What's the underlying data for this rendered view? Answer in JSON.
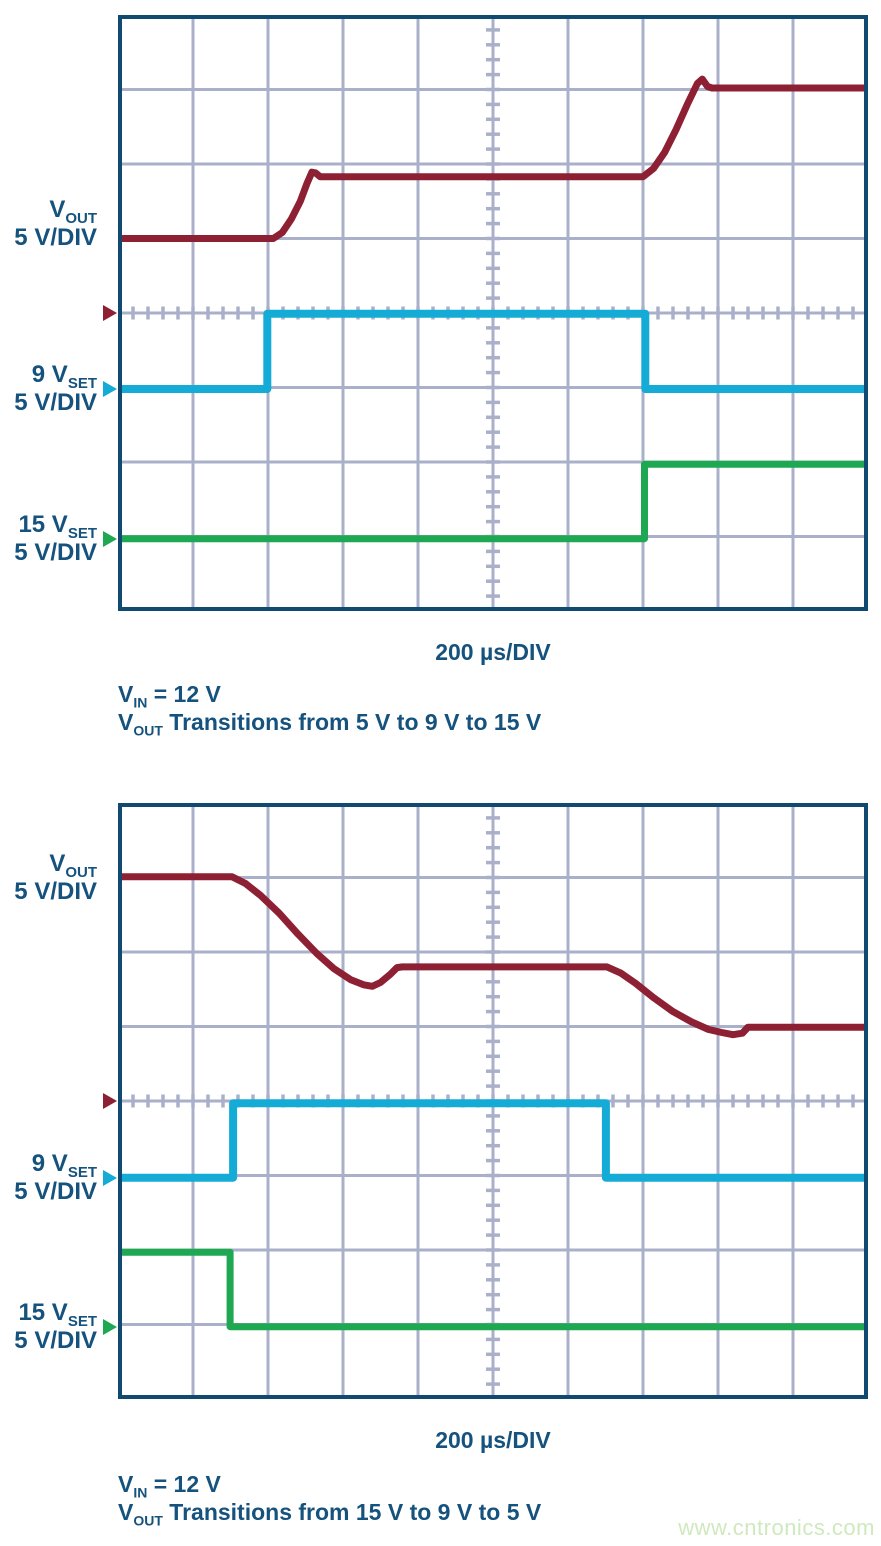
{
  "colors": {
    "navy_text": "#15527d",
    "border": "#114a70",
    "grid": "#aab0ca",
    "red": "#8e2033",
    "cyan": "#14abd6",
    "green": "#1fa852",
    "watermark": "#cfe9bd",
    "background": "#ffffff"
  },
  "watermark": "www.cntronics.com",
  "chart_data": [
    {
      "type": "line",
      "title": "VOUT Transitions from 5 V to 9 V to 15 V",
      "x_unit": "µs",
      "x_per_div": 200,
      "x_range": [
        0,
        2000
      ],
      "divisions": {
        "x": 10,
        "y": 8
      },
      "grid": "on",
      "xlabel": "200 µs/DIV",
      "caption": [
        {
          "pre": "V",
          "sub": "IN",
          "rest": " = 12 V"
        },
        {
          "pre": "V",
          "sub": "OUT",
          "rest": " Transitions from 5 V to 9 V to 15 V"
        }
      ],
      "channels": [
        {
          "name": "VOUT",
          "label": {
            "main": "V",
            "sub": "OUT",
            "scale": "5 V/DIV"
          },
          "color_key": "red",
          "volts_per_div": 5,
          "zero_div": 4.0,
          "label_div": 2.8,
          "stroke": 7,
          "points": [
            [
              0,
              5.0
            ],
            [
              414,
              5.0
            ],
            [
              438,
              5.4
            ],
            [
              462,
              6.3
            ],
            [
              486,
              7.5
            ],
            [
              504,
              8.7
            ],
            [
              517,
              9.45
            ],
            [
              527,
              9.4
            ],
            [
              539,
              9.15
            ],
            [
              1400,
              9.15
            ],
            [
              1428,
              9.7
            ],
            [
              1458,
              10.8
            ],
            [
              1488,
              12.3
            ],
            [
              1518,
              14.0
            ],
            [
              1545,
              15.4
            ],
            [
              1558,
              15.7
            ],
            [
              1572,
              15.2
            ],
            [
              1584,
              15.1
            ],
            [
              2000,
              15.1
            ]
          ]
        },
        {
          "name": "9VSET",
          "label": {
            "main": "9 V",
            "sub": "SET",
            "scale": "5 V/DIV"
          },
          "color_key": "cyan",
          "volts_per_div": 5,
          "zero_div": 5.02,
          "label_div": 5.02,
          "stroke": 8,
          "points": [
            [
              0,
              0
            ],
            [
              398,
              0
            ],
            [
              398,
              5.05
            ],
            [
              1406,
              5.05
            ],
            [
              1406,
              0
            ],
            [
              2000,
              0
            ]
          ]
        },
        {
          "name": "15VSET",
          "label": {
            "main": "15 V",
            "sub": "SET",
            "scale": "5 V/DIV"
          },
          "color_key": "green",
          "volts_per_div": 5,
          "zero_div": 7.03,
          "label_div": 7.03,
          "stroke": 7,
          "points": [
            [
              0,
              0
            ],
            [
              1404,
              0
            ],
            [
              1404,
              5.0
            ],
            [
              2000,
              5.0
            ]
          ]
        }
      ]
    },
    {
      "type": "line",
      "title": "VOUT Transitions from 15 V to 9 V to 5 V",
      "x_unit": "µs",
      "x_per_div": 200,
      "x_range": [
        0,
        2000
      ],
      "divisions": {
        "x": 10,
        "y": 8
      },
      "grid": "on",
      "xlabel": "200 µs/DIV",
      "caption": [
        {
          "pre": "V",
          "sub": "IN",
          "rest": " = 12 V"
        },
        {
          "pre": "V",
          "sub": "OUT",
          "rest": " Transitions from 15 V to 9 V to 5 V"
        }
      ],
      "channels": [
        {
          "name": "VOUT",
          "label": {
            "main": "V",
            "sub": "OUT",
            "scale": "5 V/DIV"
          },
          "color_key": "red",
          "volts_per_div": 5,
          "zero_div": 4.0,
          "label_div": 1.0,
          "stroke": 7,
          "points": [
            [
              0,
              15.05
            ],
            [
              304,
              15.05
            ],
            [
              340,
              14.6
            ],
            [
              380,
              13.8
            ],
            [
              430,
              12.6
            ],
            [
              480,
              11.2
            ],
            [
              530,
              9.9
            ],
            [
              575,
              8.9
            ],
            [
              620,
              8.15
            ],
            [
              655,
              7.8
            ],
            [
              678,
              7.7
            ],
            [
              700,
              7.95
            ],
            [
              726,
              8.5
            ],
            [
              744,
              8.95
            ],
            [
              758,
              9.0
            ],
            [
              1304,
              9.0
            ],
            [
              1340,
              8.6
            ],
            [
              1380,
              7.9
            ],
            [
              1430,
              6.9
            ],
            [
              1480,
              6.0
            ],
            [
              1530,
              5.3
            ],
            [
              1575,
              4.8
            ],
            [
              1610,
              4.6
            ],
            [
              1640,
              4.45
            ],
            [
              1665,
              4.55
            ],
            [
              1680,
              4.95
            ],
            [
              2000,
              4.95
            ]
          ]
        },
        {
          "name": "9VSET",
          "label": {
            "main": "9 V",
            "sub": "SET",
            "scale": "5 V/DIV"
          },
          "color_key": "cyan",
          "volts_per_div": 5,
          "zero_div": 5.03,
          "label_div": 5.03,
          "stroke": 8,
          "points": [
            [
              0,
              0
            ],
            [
              307,
              0
            ],
            [
              307,
              5.0
            ],
            [
              1301,
              5.0
            ],
            [
              1301,
              0
            ],
            [
              2000,
              0
            ]
          ]
        },
        {
          "name": "15VSET",
          "label": {
            "main": "15 V",
            "sub": "SET",
            "scale": "5 V/DIV"
          },
          "color_key": "green",
          "volts_per_div": 5,
          "zero_div": 7.03,
          "label_div": 7.03,
          "stroke": 7,
          "points": [
            [
              0,
              5.0
            ],
            [
              299,
              5.0
            ],
            [
              299,
              0
            ],
            [
              2000,
              0
            ]
          ]
        }
      ]
    }
  ]
}
